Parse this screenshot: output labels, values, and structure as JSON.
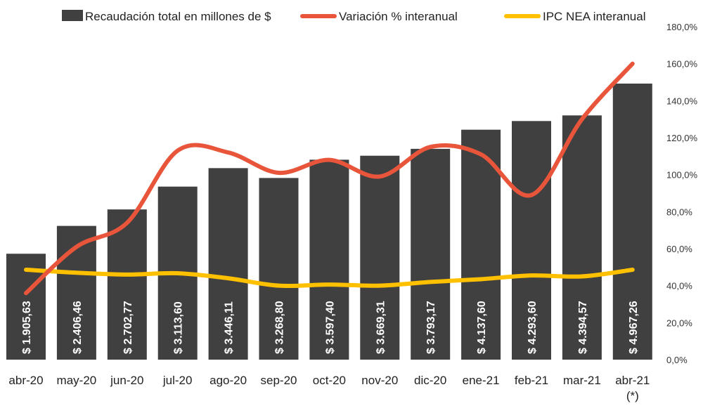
{
  "chart_data": {
    "type": "bar",
    "title": "",
    "categories": [
      "abr-20",
      "may-20",
      "jun-20",
      "jul-20",
      "ago-20",
      "sep-20",
      "oct-20",
      "nov-20",
      "dic-20",
      "ene-21",
      "feb-21",
      "mar-21",
      "abr-21"
    ],
    "category_note": {
      "abr-21": "(*)"
    },
    "series": [
      {
        "name": "Recaudación total en millones de $",
        "type": "bar",
        "axis": "left",
        "color": "#404040",
        "values": [
          1905.63,
          2406.46,
          2702.77,
          3113.6,
          3446.11,
          3268.8,
          3597.4,
          3669.31,
          3793.17,
          4137.6,
          4293.6,
          4394.57,
          4967.26
        ],
        "labels": [
          "$ 1.905,63",
          "$ 2.406,46",
          "$ 2.702,77",
          "$ 3.113,60",
          "$ 3.446,11",
          "$ 3.268,80",
          "$ 3.597,40",
          "$ 3.669,31",
          "$ 3.793,17",
          "$ 4.137,60",
          "$ 4.293,60",
          "$ 4.394,57",
          "$ 4.967,26"
        ]
      },
      {
        "name": "Variación % interanual",
        "type": "line",
        "axis": "right",
        "color": "#E9553A",
        "values": [
          36,
          61,
          74,
          113,
          112,
          101,
          108,
          99,
          115,
          111,
          89,
          130,
          160
        ]
      },
      {
        "name": "IPC NEA interanual",
        "type": "line",
        "axis": "right",
        "color": "#FFC000",
        "values": [
          48.6,
          47,
          46,
          46.7,
          44,
          40,
          40.6,
          40,
          42,
          43.5,
          45.5,
          45,
          48.6
        ]
      }
    ],
    "left_axis": {
      "visible": false,
      "ylim": [
        0,
        6300
      ]
    },
    "right_axis": {
      "ylim": [
        0,
        180
      ],
      "ticks": [
        "0,0%",
        "20,0%",
        "40,0%",
        "60,0%",
        "80,0%",
        "100,0%",
        "120,0%",
        "140,0%",
        "160,0%",
        "180,0%"
      ]
    },
    "legend_position": "top",
    "grid": false
  }
}
